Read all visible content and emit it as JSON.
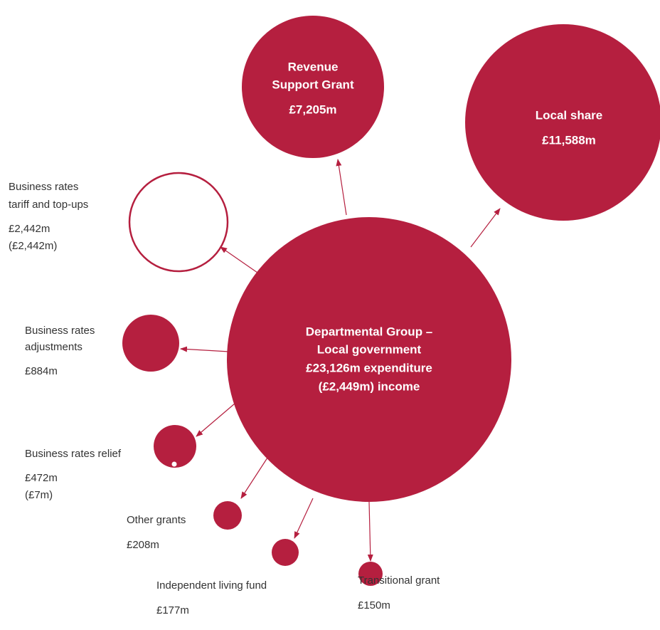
{
  "nodes": [
    {
      "lines": [
        "Departmental Group –",
        "Local government",
        "£23,126m expenditure",
        "(£2,449m) income"
      ]
    },
    {
      "lines": [
        "Revenue",
        "Support Grant"
      ],
      "amounts": [
        "£7,205m"
      ]
    },
    {
      "lines": [
        "Local share"
      ],
      "amounts": [
        "£11,588m"
      ]
    },
    {
      "lines": [
        "Business rates",
        "tariff and top-ups"
      ],
      "amounts": [
        "£2,442m",
        "(£2,442m)"
      ]
    },
    {
      "lines": [
        "Business rates",
        "adjustments"
      ],
      "amounts": [
        "£884m"
      ]
    },
    {
      "lines": [
        "Business rates relief"
      ],
      "amounts": [
        "£472m",
        "(£7m)"
      ]
    },
    {
      "lines": [
        "Other grants"
      ],
      "amounts": [
        "£208m"
      ]
    },
    {
      "lines": [
        "Independent living fund"
      ],
      "amounts": [
        "£177m"
      ]
    },
    {
      "lines": [
        "Transitional grant"
      ],
      "amounts": [
        "£150m"
      ]
    }
  ]
}
